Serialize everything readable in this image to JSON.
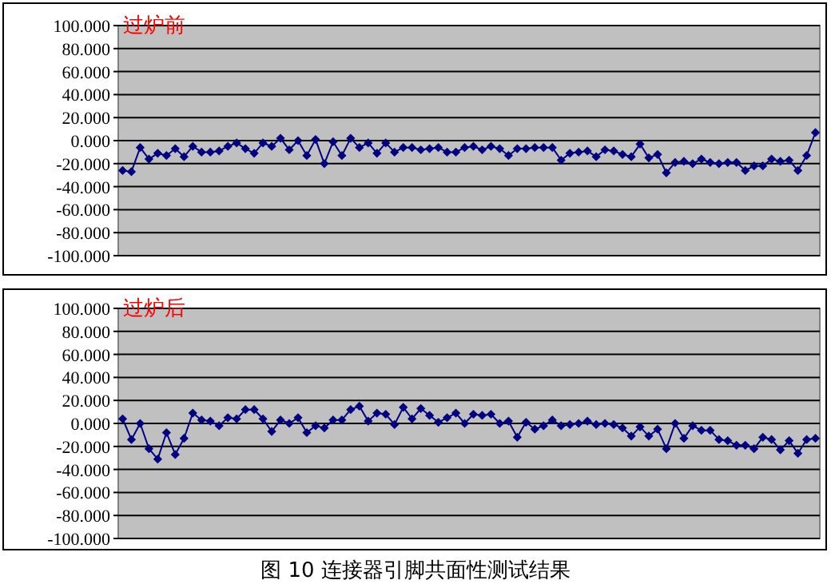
{
  "chart_data": [
    {
      "type": "line",
      "title": "过炉前",
      "categories": [
        null,
        null,
        null,
        null,
        null,
        null,
        null,
        null,
        null,
        null,
        null,
        null,
        null,
        null,
        null,
        null,
        null,
        null,
        null,
        null,
        null,
        null,
        null,
        null,
        null,
        null,
        null,
        null,
        null,
        null,
        null,
        null,
        null,
        null,
        null,
        null,
        null,
        null,
        null,
        null,
        null,
        null,
        null,
        null,
        null,
        null,
        null,
        null,
        null,
        null,
        null,
        null,
        null,
        null,
        null,
        null,
        null,
        null,
        null,
        null,
        null,
        null,
        null,
        null,
        null,
        null,
        null,
        null,
        null,
        null,
        null,
        null,
        null,
        null,
        null,
        null,
        null,
        null,
        null,
        null
      ],
      "series": [
        {
          "color": "#000080",
          "values": [
            -26,
            -27,
            -6,
            -16,
            -11,
            -13,
            -7,
            -14,
            -5,
            -10,
            -10,
            -9,
            -5,
            -2,
            -7,
            -11,
            -2,
            -5,
            2,
            -8,
            0,
            -13,
            1,
            -20,
            -1,
            -13,
            2,
            -6,
            -2,
            -11,
            -2,
            -10,
            -6,
            -6,
            -8,
            -7,
            -6,
            -10,
            -10,
            -6,
            -5,
            -8,
            -5,
            -7,
            -13,
            -7,
            -7,
            -6,
            -6,
            -6,
            -17,
            -11,
            -10,
            -9,
            -14,
            -8,
            -9,
            -12,
            -14,
            -3,
            -15,
            -12,
            -28,
            -19,
            -18,
            -20,
            -16,
            -19,
            -20,
            -19,
            -19,
            -26,
            -22,
            -22,
            -16,
            -18,
            -17,
            -26,
            -13,
            7
          ]
        }
      ],
      "ylim": [
        -100,
        100
      ],
      "yticks": [
        {
          "value": -100,
          "label": "-100.000"
        },
        {
          "value": -80,
          "label": "-80.000"
        },
        {
          "value": -60,
          "label": "-60.000"
        },
        {
          "value": -40,
          "label": "-40.000"
        },
        {
          "value": -20,
          "label": "-20.000"
        },
        {
          "value": 0,
          "label": "0.000"
        },
        {
          "value": 20,
          "label": "20.000"
        },
        {
          "value": 40,
          "label": "40.000"
        },
        {
          "value": 60,
          "label": "60.000"
        },
        {
          "value": 80,
          "label": "80.000"
        },
        {
          "value": 100,
          "label": "100.000"
        }
      ],
      "grid": "y",
      "marker": "diamond",
      "tick_labels": "y"
    },
    {
      "type": "line",
      "title": "过炉后",
      "categories": [
        null,
        null,
        null,
        null,
        null,
        null,
        null,
        null,
        null,
        null,
        null,
        null,
        null,
        null,
        null,
        null,
        null,
        null,
        null,
        null,
        null,
        null,
        null,
        null,
        null,
        null,
        null,
        null,
        null,
        null,
        null,
        null,
        null,
        null,
        null,
        null,
        null,
        null,
        null,
        null,
        null,
        null,
        null,
        null,
        null,
        null,
        null,
        null,
        null,
        null,
        null,
        null,
        null,
        null,
        null,
        null,
        null,
        null,
        null,
        null,
        null,
        null,
        null,
        null,
        null,
        null,
        null,
        null,
        null,
        null,
        null,
        null,
        null,
        null,
        null,
        null,
        null,
        null,
        null,
        null
      ],
      "series": [
        {
          "color": "#000080",
          "values": [
            4,
            -14,
            0,
            -22,
            -31,
            -8,
            -27,
            -13,
            9,
            3,
            2,
            -2,
            5,
            4,
            12,
            12,
            4,
            -7,
            3,
            0,
            5,
            -8,
            -2,
            -4,
            3,
            3,
            12,
            15,
            2,
            9,
            8,
            -1,
            14,
            4,
            13,
            7,
            1,
            5,
            9,
            0,
            8,
            7,
            8,
            0,
            2,
            -12,
            1,
            -5,
            -2,
            3,
            -2,
            -1,
            0,
            2,
            -1,
            0,
            -1,
            -4,
            -11,
            -3,
            -11,
            -5,
            -22,
            0,
            -13,
            -2,
            -6,
            -6,
            -14,
            -15,
            -19,
            -19,
            -22,
            -12,
            -14,
            -23,
            -15,
            -26,
            -14,
            -13
          ]
        }
      ],
      "ylim": [
        -100,
        100
      ],
      "yticks": [
        {
          "value": -100,
          "label": "-100.000"
        },
        {
          "value": -80,
          "label": "-80.000"
        },
        {
          "value": -60,
          "label": "-60.000"
        },
        {
          "value": -40,
          "label": "-40.000"
        },
        {
          "value": -20,
          "label": "-20.000"
        },
        {
          "value": 0,
          "label": "0.000"
        },
        {
          "value": 20,
          "label": "20.000"
        },
        {
          "value": 40,
          "label": "40.000"
        },
        {
          "value": 60,
          "label": "60.000"
        },
        {
          "value": 80,
          "label": "80.000"
        },
        {
          "value": 100,
          "label": "100.000"
        }
      ],
      "grid": "y",
      "marker": "diamond",
      "tick_labels": "y",
      "annotations": [
        "图 10 连接器引脚共面性测试结果"
      ]
    }
  ]
}
